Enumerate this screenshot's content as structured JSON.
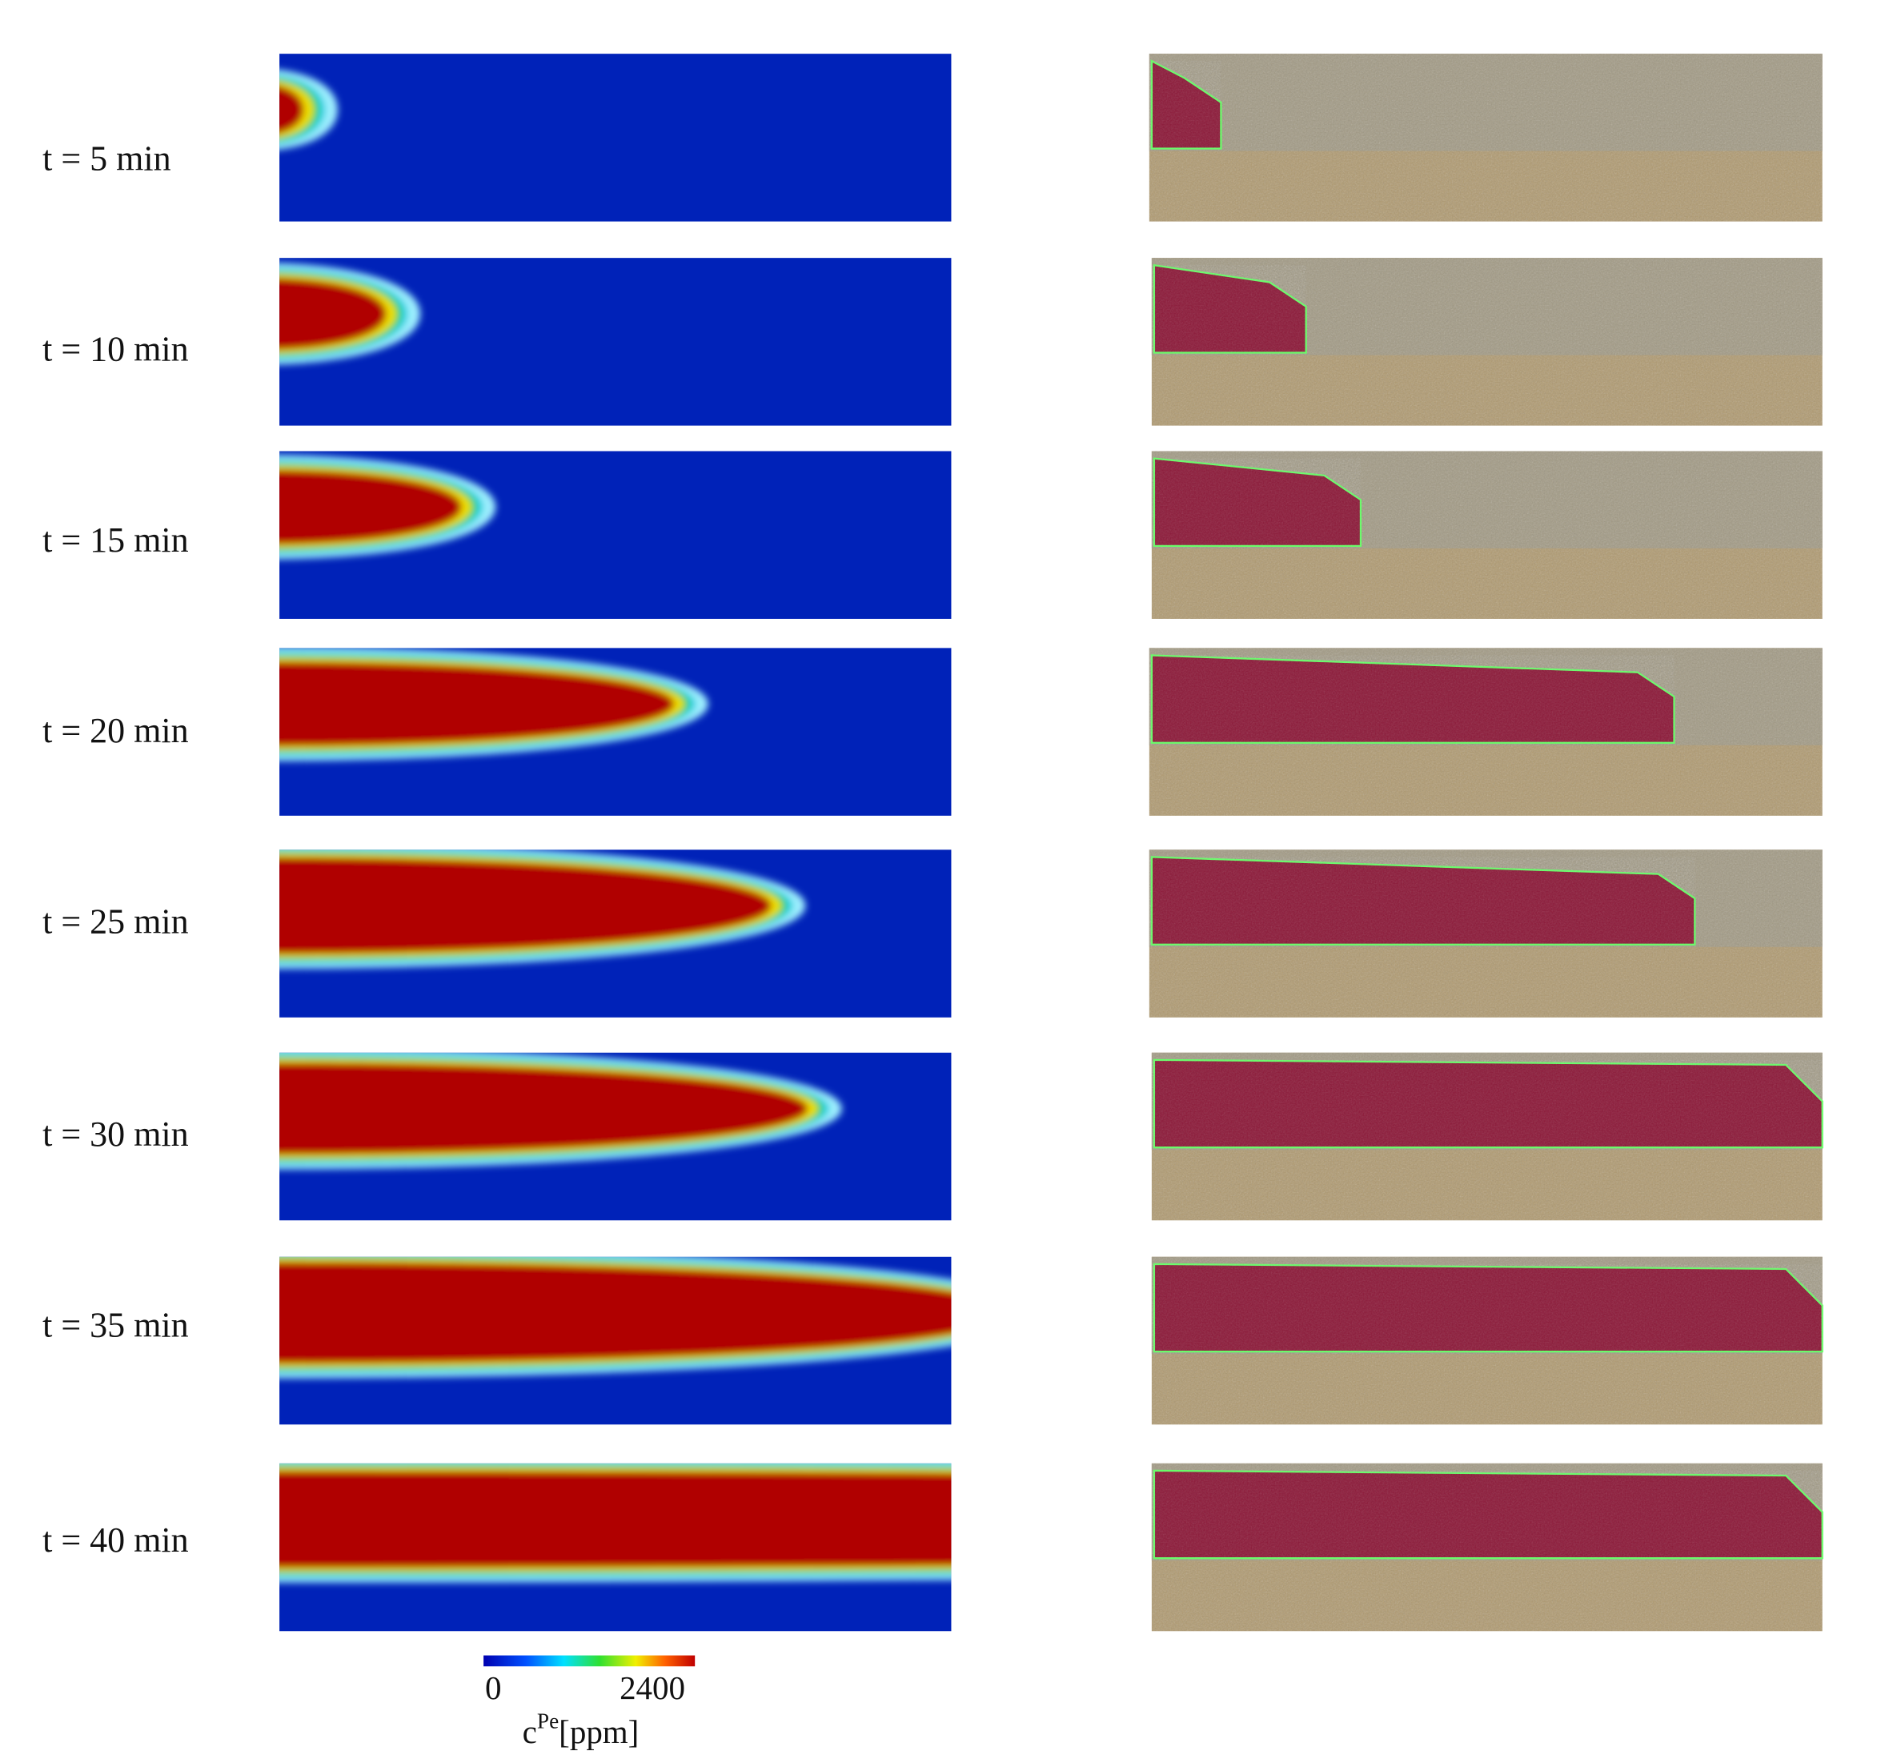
{
  "rows": [
    {
      "label": "t = 5 min"
    },
    {
      "label": "t = 10 min"
    },
    {
      "label": "t = 15 min"
    },
    {
      "label": "t = 20 min"
    },
    {
      "label": "t = 25 min"
    },
    {
      "label": "t = 30 min"
    },
    {
      "label": "t = 35 min"
    },
    {
      "label": "t = 40 min"
    }
  ],
  "colorbar": {
    "ticks": [
      0,
      2400
    ],
    "symbol": "c",
    "superscript": "Pe",
    "unit": "[ppm]"
  }
}
